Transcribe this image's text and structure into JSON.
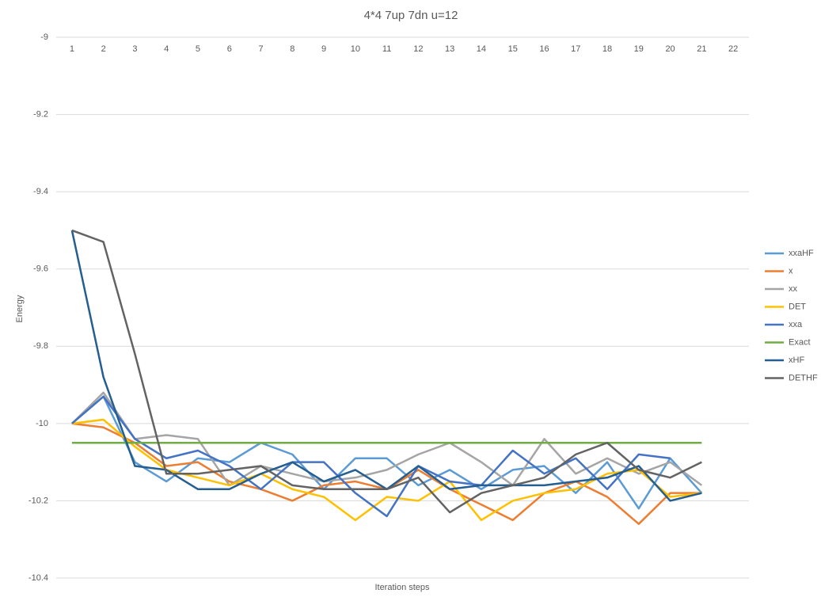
{
  "chart_data": {
    "type": "line",
    "title": "4*4 7up 7dn u=12",
    "x_label": "Iteration steps",
    "y_label": "Energy",
    "categories": [
      "1",
      "2",
      "3",
      "4",
      "5",
      "6",
      "7",
      "8",
      "9",
      "10",
      "11",
      "12",
      "13",
      "14",
      "15",
      "16",
      "17",
      "18",
      "19",
      "20",
      "21",
      "22"
    ],
    "ylim": [
      -10.4,
      -9
    ],
    "yticks": [
      -9,
      -9.2,
      -9.4,
      -9.6,
      -9.8,
      -10,
      -10.2,
      -10.4
    ],
    "grid": true,
    "legend": "right",
    "series": [
      {
        "name": "xxaHF",
        "color": "#5b9bd5",
        "values": [
          -10,
          -9.93,
          -10.1,
          -10.15,
          -10.09,
          -10.1,
          -10.05,
          -10.08,
          -10.17,
          -10.09,
          -10.09,
          -10.16,
          -10.12,
          -10.17,
          -10.12,
          -10.11,
          -10.18,
          -10.1,
          -10.22,
          -10.09,
          -10.18,
          null
        ]
      },
      {
        "name": "x",
        "color": "#ed7d31",
        "values": [
          -10,
          -10.01,
          -10.05,
          -10.11,
          -10.1,
          -10.15,
          -10.17,
          -10.2,
          -10.16,
          -10.15,
          -10.17,
          -10.12,
          -10.17,
          -10.21,
          -10.25,
          -10.18,
          -10.15,
          -10.19,
          -10.26,
          -10.18,
          -10.18,
          null
        ]
      },
      {
        "name": "xx",
        "color": "#a5a5a5",
        "values": [
          -10,
          -9.92,
          -10.04,
          -10.03,
          -10.04,
          -10.16,
          -10.11,
          -10.13,
          -10.15,
          -10.14,
          -10.12,
          -10.08,
          -10.05,
          -10.1,
          -10.16,
          -10.04,
          -10.13,
          -10.09,
          -10.13,
          -10.1,
          -10.16,
          null
        ]
      },
      {
        "name": "DET",
        "color": "#ffc000",
        "values": [
          -10,
          -9.99,
          -10.06,
          -10.12,
          -10.14,
          -10.16,
          -10.13,
          -10.17,
          -10.19,
          -10.25,
          -10.19,
          -10.2,
          -10.15,
          -10.25,
          -10.2,
          -10.18,
          -10.17,
          -10.13,
          -10.12,
          -10.19,
          -10.18,
          null
        ]
      },
      {
        "name": "xxa",
        "color": "#4472c4",
        "values": [
          -10,
          -9.93,
          -10.04,
          -10.09,
          -10.07,
          -10.11,
          -10.17,
          -10.1,
          -10.1,
          -10.18,
          -10.24,
          -10.11,
          -10.15,
          -10.16,
          -10.07,
          -10.13,
          -10.09,
          -10.17,
          -10.08,
          -10.09,
          null,
          null
        ]
      },
      {
        "name": "Exact",
        "color": "#70ad47",
        "values": [
          -10.05,
          -10.05,
          -10.05,
          -10.05,
          -10.05,
          -10.05,
          -10.05,
          -10.05,
          -10.05,
          -10.05,
          -10.05,
          -10.05,
          -10.05,
          -10.05,
          -10.05,
          -10.05,
          -10.05,
          -10.05,
          -10.05,
          -10.05,
          -10.05,
          null
        ]
      },
      {
        "name": "xHF",
        "color": "#255e91",
        "values": [
          -9.5,
          -9.88,
          -10.11,
          -10.12,
          -10.17,
          -10.17,
          -10.13,
          -10.1,
          -10.15,
          -10.12,
          -10.17,
          -10.11,
          -10.17,
          -10.16,
          -10.16,
          -10.16,
          -10.15,
          -10.14,
          -10.11,
          -10.2,
          -10.18,
          null
        ]
      },
      {
        "name": "DETHF",
        "color": "#636363",
        "values": [
          -9.5,
          -9.53,
          -9.82,
          -10.13,
          -10.13,
          -10.12,
          -10.11,
          -10.16,
          -10.17,
          -10.17,
          -10.17,
          -10.14,
          -10.23,
          -10.18,
          -10.16,
          -10.14,
          -10.08,
          -10.05,
          -10.12,
          -10.14,
          -10.1,
          null
        ]
      }
    ]
  }
}
